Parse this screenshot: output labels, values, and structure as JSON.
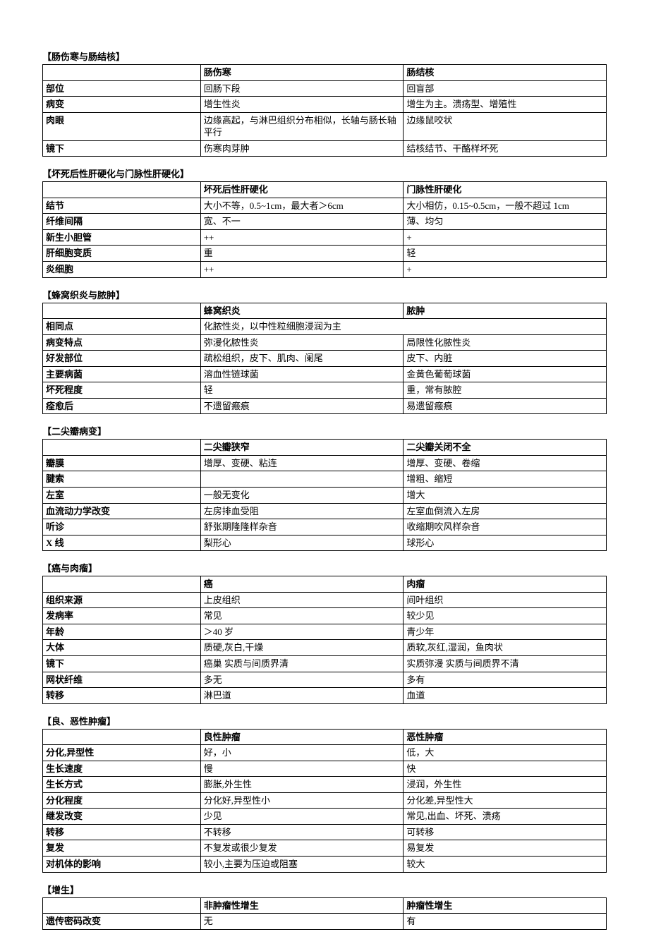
{
  "sections": [
    {
      "title": "【肠伤寒与肠结核】",
      "headers": [
        "",
        "肠伤寒",
        "肠结核"
      ],
      "rows": [
        [
          "部位",
          "回肠下段",
          "回盲部"
        ],
        [
          "病变",
          "增生性炎",
          "增生为主。溃疡型、增殖性"
        ],
        [
          "肉眼",
          "边缘高起，与淋巴组织分布相似，长轴与肠长轴平行",
          "边缘鼠咬状"
        ],
        [
          "镜下",
          "伤寒肉芽肿",
          "结核结节、干酪样坏死"
        ]
      ]
    },
    {
      "title": "【坏死后性肝硬化与门脉性肝硬化】",
      "headers": [
        "",
        "坏死后性肝硬化",
        "门脉性肝硬化"
      ],
      "rows": [
        [
          "结节",
          "大小不等，0.5~1cm，最大者＞6cm",
          "大小相仿，0.15~0.5cm，一般不超过 1cm"
        ],
        [
          "纤维间隔",
          "宽、不一",
          "薄、均匀"
        ],
        [
          "新生小胆管",
          "++",
          "+"
        ],
        [
          "肝细胞变质",
          "重",
          "轻"
        ],
        [
          "炎细胞",
          "++",
          "+"
        ]
      ]
    },
    {
      "title": "【蜂窝织炎与脓肿】",
      "headers": [
        "",
        "蜂窝织炎",
        "脓肿"
      ],
      "mergedRow": {
        "label": "相同点",
        "value": "化脓性炎，以中性粒细胞浸润为主"
      },
      "rows": [
        [
          "病变特点",
          "弥漫化脓性炎",
          "局限性化脓性炎"
        ],
        [
          "好发部位",
          "疏松组织，皮下、肌肉、阑尾",
          "皮下、内脏"
        ],
        [
          "主要病菌",
          "溶血性链球菌",
          "金黄色葡萄球菌"
        ],
        [
          "坏死程度",
          "轻",
          "重，常有脓腔"
        ],
        [
          "痊愈后",
          "不遗留瘢痕",
          "易遗留瘢痕"
        ]
      ]
    },
    {
      "title": "【二尖瓣病变】",
      "headers": [
        "",
        "二尖瓣狭窄",
        "二尖瓣关闭不全"
      ],
      "rows": [
        [
          "瓣膜",
          "增厚、变硬、粘连",
          "增厚、变硬、卷缩"
        ],
        [
          "腱索",
          "",
          "增粗、缩短"
        ],
        [
          "左室",
          "一般无变化",
          "增大"
        ],
        [
          "血流动力学改变",
          "左房排血受阻",
          "左室血倒流入左房"
        ],
        [
          "听诊",
          "舒张期隆隆样杂音",
          "收缩期吹风样杂音"
        ],
        [
          "X 线",
          "梨形心",
          "球形心"
        ]
      ]
    },
    {
      "title": "【癌与肉瘤】",
      "headers": [
        "",
        "癌",
        "肉瘤"
      ],
      "rows": [
        [
          "组织来源",
          "上皮组织",
          "间叶组织"
        ],
        [
          "发病率",
          "常见",
          "较少见"
        ],
        [
          "年龄",
          "＞40 岁",
          "青少年"
        ],
        [
          "大体",
          "质硬,灰白,干燥",
          "质软,灰红,湿润，鱼肉状"
        ],
        [
          "镜下",
          "癌巢 实质与间质界清",
          "实质弥漫 实质与间质界不清"
        ],
        [
          "网状纤维",
          "多无",
          "多有"
        ],
        [
          "转移",
          "淋巴道",
          "血道"
        ]
      ]
    },
    {
      "title": "【良、恶性肿瘤】",
      "headers": [
        "",
        "良性肿瘤",
        "恶性肿瘤"
      ],
      "rows": [
        [
          "分化,异型性",
          "好，小",
          "低，大"
        ],
        [
          "生长速度",
          "慢",
          "快"
        ],
        [
          "生长方式",
          "膨胀,外生性",
          "浸润，外生性"
        ],
        [
          "分化程度",
          "分化好,异型性小",
          "分化差,异型性大"
        ],
        [
          "继发改变",
          "少见",
          "常见,出血、坏死、溃疡"
        ],
        [
          "转移",
          "不转移",
          "可转移"
        ],
        [
          "复发",
          "不复发或很少复发",
          "易复发"
        ],
        [
          "对机体的影响",
          "较小,主要为压迫或阻塞",
          "较大"
        ]
      ]
    },
    {
      "title": "【增生】",
      "headers": [
        "",
        "非肿瘤性增生",
        "肿瘤性增生"
      ],
      "rows": [
        [
          "遗传密码改变",
          "无",
          "有"
        ]
      ]
    }
  ]
}
